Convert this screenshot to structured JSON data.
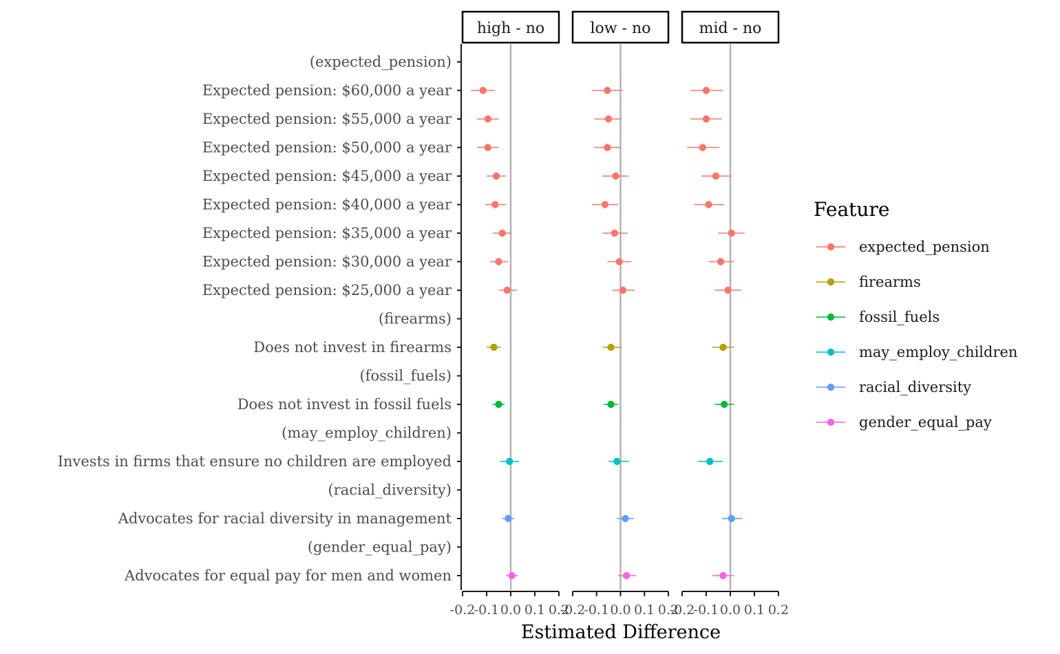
{
  "chart_data": {
    "type": "scatter",
    "subtype": "faceted-pointrange",
    "title": "",
    "xlabel": "Estimated Difference",
    "ylabel": "",
    "xlim": [
      -0.2,
      0.2
    ],
    "xticks": [
      -0.2,
      -0.1,
      0.0,
      0.1,
      0.2
    ],
    "xtick_labels": [
      "-0.2",
      "-0.1",
      "0.0",
      "0.1",
      "0.2"
    ],
    "reference_line": 0,
    "grid": false,
    "legend": {
      "title": "Feature",
      "position": "right"
    },
    "colors": {
      "expected_pension": "#F8766D",
      "firearms": "#B79F00",
      "fossil_fuels": "#00BA38",
      "may_employ_children": "#00BFC4",
      "racial_diversity": "#619CFF",
      "gender_equal_pay": "#F564E3"
    },
    "series": [
      {
        "name": "expected_pension"
      },
      {
        "name": "firearms"
      },
      {
        "name": "fossil_fuels"
      },
      {
        "name": "may_employ_children"
      },
      {
        "name": "racial_diversity"
      },
      {
        "name": "gender_equal_pay"
      }
    ],
    "rows": [
      {
        "label": "(expected_pension)",
        "feature": "expected_pension",
        "header": true
      },
      {
        "label": "Expected pension: $60,000 a year",
        "feature": "expected_pension"
      },
      {
        "label": "Expected pension: $55,000 a year",
        "feature": "expected_pension"
      },
      {
        "label": "Expected pension: $50,000 a year",
        "feature": "expected_pension"
      },
      {
        "label": "Expected pension: $45,000 a year",
        "feature": "expected_pension"
      },
      {
        "label": "Expected pension: $40,000 a year",
        "feature": "expected_pension"
      },
      {
        "label": "Expected pension: $35,000 a year",
        "feature": "expected_pension"
      },
      {
        "label": "Expected pension: $30,000 a year",
        "feature": "expected_pension"
      },
      {
        "label": "Expected pension: $25,000 a year",
        "feature": "expected_pension"
      },
      {
        "label": "(firearms)",
        "feature": "firearms",
        "header": true
      },
      {
        "label": "Does not invest in firearms",
        "feature": "firearms"
      },
      {
        "label": "(fossil_fuels)",
        "feature": "fossil_fuels",
        "header": true
      },
      {
        "label": "Does not invest in fossil fuels",
        "feature": "fossil_fuels"
      },
      {
        "label": "(may_employ_children)",
        "feature": "may_employ_children",
        "header": true
      },
      {
        "label": "Invests in firms that ensure no children are employed",
        "feature": "may_employ_children"
      },
      {
        "label": "(racial_diversity)",
        "feature": "racial_diversity",
        "header": true
      },
      {
        "label": "Advocates for racial diversity in management",
        "feature": "racial_diversity"
      },
      {
        "label": "(gender_equal_pay)",
        "feature": "gender_equal_pay",
        "header": true
      },
      {
        "label": "Advocates for equal pay for men and women",
        "feature": "gender_equal_pay"
      }
    ],
    "facets": [
      {
        "label": "high - no",
        "estimates": [
          null,
          -0.115,
          -0.095,
          -0.095,
          -0.06,
          -0.065,
          -0.035,
          -0.05,
          -0.015,
          null,
          -0.07,
          null,
          -0.05,
          null,
          -0.005,
          null,
          -0.01,
          null,
          0.005
        ],
        "lower": [
          null,
          -0.165,
          -0.14,
          -0.14,
          -0.1,
          -0.105,
          -0.075,
          -0.085,
          -0.05,
          null,
          -0.1,
          null,
          -0.075,
          null,
          -0.045,
          null,
          -0.035,
          null,
          -0.02
        ],
        "upper": [
          null,
          -0.065,
          -0.05,
          -0.05,
          -0.02,
          -0.02,
          0.005,
          -0.01,
          0.025,
          null,
          -0.04,
          null,
          -0.025,
          null,
          0.035,
          null,
          0.015,
          null,
          0.03
        ]
      },
      {
        "label": "low - no",
        "estimates": [
          null,
          -0.055,
          -0.05,
          -0.055,
          -0.02,
          -0.065,
          -0.025,
          -0.005,
          0.01,
          null,
          -0.04,
          null,
          -0.04,
          null,
          -0.015,
          null,
          0.02,
          null,
          0.025
        ],
        "lower": [
          null,
          -0.12,
          -0.11,
          -0.11,
          -0.075,
          -0.12,
          -0.075,
          -0.055,
          -0.035,
          null,
          -0.075,
          null,
          -0.07,
          null,
          -0.05,
          null,
          -0.015,
          null,
          -0.01
        ],
        "upper": [
          null,
          0.01,
          0.005,
          0.0,
          0.035,
          -0.01,
          0.03,
          0.045,
          0.06,
          null,
          0.005,
          null,
          -0.01,
          null,
          0.035,
          null,
          0.055,
          null,
          0.065
        ]
      },
      {
        "label": "mid - no",
        "estimates": [
          null,
          -0.1,
          -0.1,
          -0.115,
          -0.06,
          -0.09,
          0.005,
          -0.04,
          -0.01,
          null,
          -0.03,
          null,
          -0.025,
          null,
          -0.085,
          null,
          0.005,
          null,
          -0.03
        ],
        "lower": [
          null,
          -0.165,
          -0.165,
          -0.18,
          -0.12,
          -0.15,
          -0.05,
          -0.09,
          -0.065,
          null,
          -0.075,
          null,
          -0.065,
          null,
          -0.135,
          null,
          -0.035,
          null,
          -0.075
        ],
        "upper": [
          null,
          -0.03,
          -0.035,
          -0.045,
          0.005,
          -0.025,
          0.06,
          0.015,
          0.045,
          null,
          0.015,
          null,
          0.015,
          null,
          -0.03,
          null,
          0.05,
          null,
          0.015
        ]
      }
    ]
  }
}
